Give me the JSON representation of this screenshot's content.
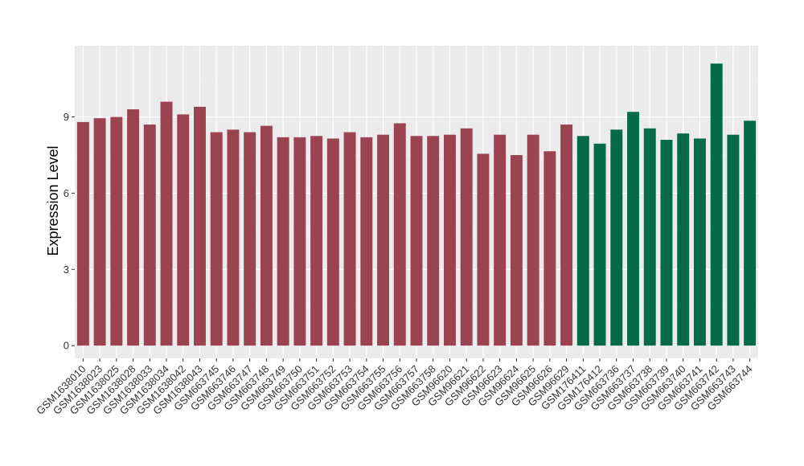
{
  "chart_data": {
    "type": "bar",
    "ylabel": "Expression Level",
    "xlabel": "",
    "ylim": [
      -0.5,
      11.8
    ],
    "yticks": [
      0,
      3,
      6,
      9
    ],
    "grid": true,
    "background": "#ebebeb",
    "categories": [
      "GSM1638010",
      "GSM1638023",
      "GSM1638025",
      "GSM1638028",
      "GSM1638033",
      "GSM1638034",
      "GSM1638042",
      "GSM1638043",
      "GSM663745",
      "GSM663746",
      "GSM663747",
      "GSM663748",
      "GSM663749",
      "GSM663750",
      "GSM663751",
      "GSM663752",
      "GSM663753",
      "GSM663754",
      "GSM663755",
      "GSM663756",
      "GSM663757",
      "GSM663758",
      "GSM96620",
      "GSM96621",
      "GSM96622",
      "GSM96623",
      "GSM96624",
      "GSM96625",
      "GSM96626",
      "GSM96629",
      "GSM176411",
      "GSM176412",
      "GSM663736",
      "GSM663737",
      "GSM663738",
      "GSM663739",
      "GSM663740",
      "GSM663741",
      "GSM663742",
      "GSM663743",
      "GSM663744"
    ],
    "values": [
      8.8,
      8.95,
      9.0,
      9.3,
      8.7,
      9.6,
      9.1,
      9.4,
      8.4,
      8.5,
      8.4,
      8.65,
      8.2,
      8.2,
      8.25,
      8.15,
      8.4,
      8.2,
      8.3,
      8.75,
      8.25,
      8.25,
      8.3,
      8.55,
      7.55,
      8.3,
      7.5,
      8.3,
      7.65,
      8.7,
      8.25,
      7.95,
      8.5,
      9.2,
      8.55,
      8.1,
      8.35,
      8.15,
      11.1,
      8.3,
      8.85
    ],
    "groups": [
      0,
      0,
      0,
      0,
      0,
      0,
      0,
      0,
      0,
      0,
      0,
      0,
      0,
      0,
      0,
      0,
      0,
      0,
      0,
      0,
      0,
      0,
      0,
      0,
      0,
      0,
      0,
      0,
      0,
      0,
      1,
      1,
      1,
      1,
      1,
      1,
      1,
      1,
      1,
      1,
      1
    ],
    "colors": [
      "#9b4350",
      "#046a47"
    ]
  }
}
